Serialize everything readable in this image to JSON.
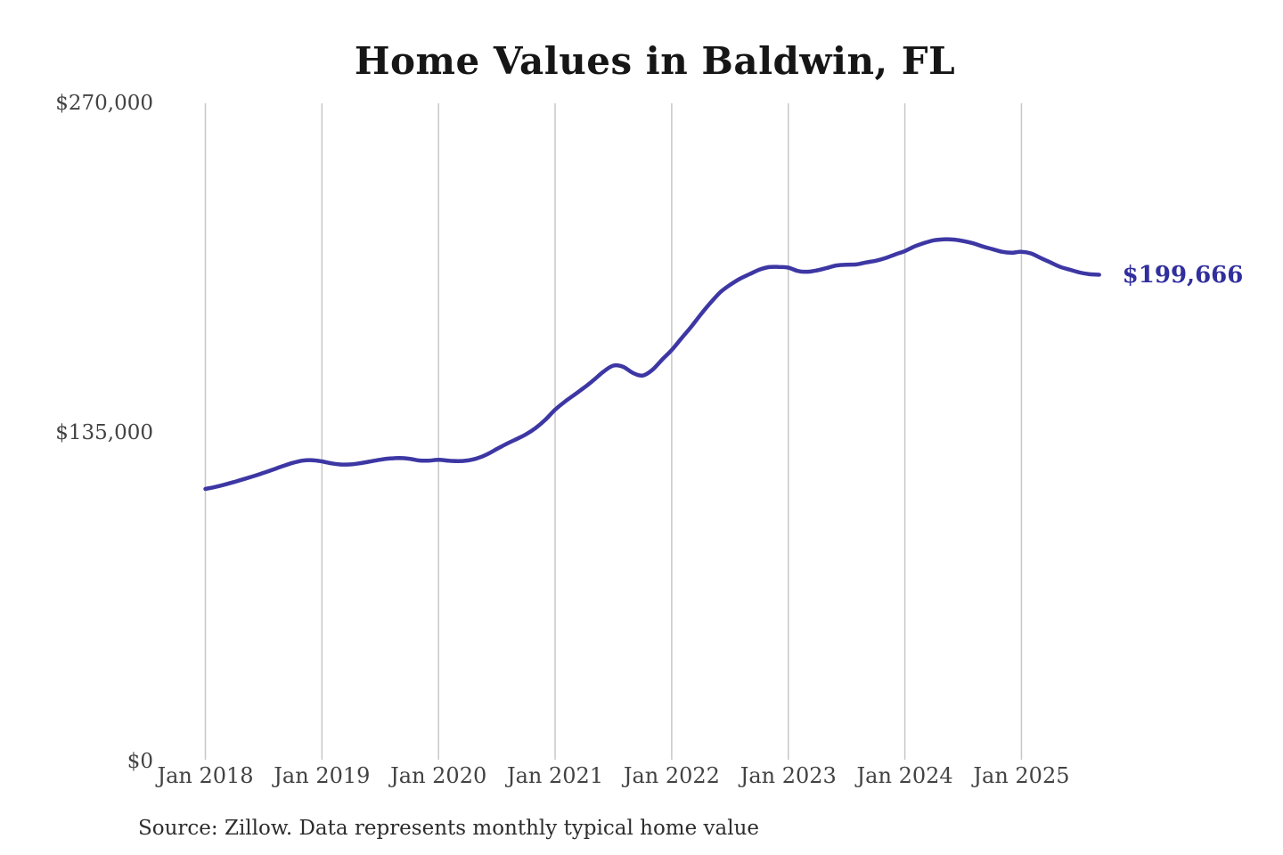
{
  "title": "Home Values in Baldwin, FL",
  "source_note": "Source: Zillow. Data represents monthly typical home value",
  "end_label": "$199,666",
  "colors": {
    "line": "#3d37a4",
    "end_label": "#312e9d",
    "gridline": "#c7c7c7",
    "axis_text": "#424242",
    "title_text": "#161616",
    "source_text": "#2d2d2d",
    "background": "#ffffff"
  },
  "chart_data": {
    "type": "line",
    "title": "Home Values in Baldwin, FL",
    "xlabel": "",
    "ylabel": "",
    "ylim": [
      0,
      270000
    ],
    "grid": "vertical-only",
    "legend": "none",
    "x_tick_labels": [
      "Jan 2018",
      "Jan 2019",
      "Jan 2020",
      "Jan 2021",
      "Jan 2022",
      "Jan 2023",
      "Jan 2024",
      "Jan 2025"
    ],
    "y_ticks": [
      {
        "label": "$270,000",
        "value": 270000
      },
      {
        "label": "$135,000",
        "value": 135000
      },
      {
        "label": "$0",
        "value": 0
      }
    ],
    "final_value": 199666,
    "final_value_label": "$199,666",
    "series": [
      {
        "name": "Monthly typical home value",
        "start_month": "Jan 2018",
        "end_month": "Sep 2025",
        "frequency": "monthly",
        "values": [
          111800,
          112600,
          113600,
          114700,
          115900,
          117100,
          118400,
          119800,
          121200,
          122500,
          123400,
          123600,
          123100,
          122300,
          121800,
          121900,
          122400,
          123100,
          123800,
          124300,
          124500,
          124200,
          123500,
          123400,
          123800,
          123400,
          123200,
          123500,
          124400,
          126000,
          128200,
          130300,
          132200,
          134200,
          136800,
          140200,
          144300,
          147600,
          150500,
          153400,
          156600,
          160000,
          162400,
          161900,
          159400,
          158300,
          160600,
          164800,
          168800,
          173600,
          178300,
          183400,
          188200,
          192500,
          195500,
          198000,
          199900,
          201700,
          202800,
          202900,
          202600,
          201200,
          200900,
          201500,
          202500,
          203500,
          203800,
          203900,
          204700,
          205400,
          206500,
          208000,
          209400,
          211300,
          212700,
          213800,
          214200,
          214100,
          213500,
          212600,
          211300,
          210200,
          209100,
          208700,
          209100,
          208400,
          206500,
          204700,
          202900,
          201700,
          200600,
          199900,
          199666
        ]
      }
    ]
  }
}
